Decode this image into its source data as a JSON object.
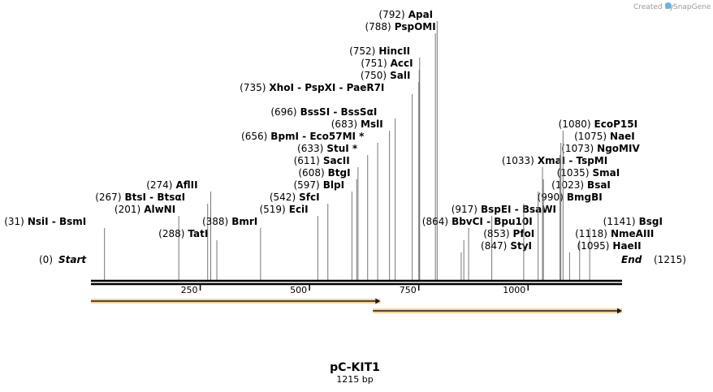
{
  "credit": {
    "text": "Created by",
    "brand": "SnapGene"
  },
  "plasmid": {
    "name": "pC-KIT1",
    "size_label": "1215 bp",
    "length": 1215
  },
  "ends": {
    "start": {
      "pos_label": "(0)",
      "name": "Start"
    },
    "end": {
      "pos_label": "(1215)",
      "name": "End"
    }
  },
  "ticks": [
    {
      "value": 250,
      "label": "250"
    },
    {
      "value": 500,
      "label": "500"
    },
    {
      "value": 750,
      "label": "750"
    },
    {
      "value": 1000,
      "label": "1000"
    }
  ],
  "features": [
    {
      "name": "feature-arrow-1",
      "start": 0,
      "end": 662,
      "color": "#f0b040"
    },
    {
      "name": "feature-arrow-2",
      "start": 645,
      "end": 1215,
      "color": "#f0b040"
    }
  ],
  "sites": [
    {
      "id": "nsii-bsmi",
      "pos": 31,
      "pos_label": "(31)",
      "text": "NsiI  - BsmI",
      "row": 12,
      "col": "left"
    },
    {
      "id": "alwni",
      "pos": 201,
      "pos_label": "(201)",
      "text": "AlwNI",
      "row": 11,
      "col": "left"
    },
    {
      "id": "btsi-btsai",
      "pos": 267,
      "pos_label": "(267)",
      "text": "BtsI  - BtsαI",
      "row": 10,
      "col": "left"
    },
    {
      "id": "aflii",
      "pos": 274,
      "pos_label": "(274)",
      "text": "AflII",
      "row": 9,
      "col": "left"
    },
    {
      "id": "tati",
      "pos": 288,
      "pos_label": "(288)",
      "text": "TatI",
      "row": 13,
      "col": "left"
    },
    {
      "id": "bmri",
      "pos": 388,
      "pos_label": "(388)",
      "text": "BmrI",
      "row": 12,
      "col": "left"
    },
    {
      "id": "ecii",
      "pos": 519,
      "pos_label": "(519)",
      "text": "EciI",
      "row": 11,
      "col": "left"
    },
    {
      "id": "sfci",
      "pos": 542,
      "pos_label": "(542)",
      "text": "SfcI",
      "row": 10,
      "col": "left"
    },
    {
      "id": "blpi",
      "pos": 597,
      "pos_label": "(597)",
      "text": "BlpI",
      "row": 9,
      "col": "left"
    },
    {
      "id": "btgi",
      "pos": 608,
      "pos_label": "(608)",
      "text": "BtgI",
      "row": 8,
      "col": "left"
    },
    {
      "id": "sacii",
      "pos": 611,
      "pos_label": "(611)",
      "text": "SacII",
      "row": 7,
      "col": "left"
    },
    {
      "id": "stui",
      "pos": 633,
      "pos_label": "(633)",
      "text": "StuI *",
      "row": 6,
      "col": "left"
    },
    {
      "id": "bpmi",
      "pos": 656,
      "pos_label": "(656)",
      "text": "BpmI  - Eco57MI *",
      "row": 5,
      "col": "left"
    },
    {
      "id": "msli",
      "pos": 683,
      "pos_label": "(683)",
      "text": "MslI",
      "row": 4,
      "col": "left"
    },
    {
      "id": "bsssi",
      "pos": 696,
      "pos_label": "(696)",
      "text": "BssSI  - BssSαI",
      "row": 3,
      "col": "left"
    },
    {
      "id": "xhoi",
      "pos": 735,
      "pos_label": "(735)",
      "text": "XhoI  - PspXI  - PaeR7I",
      "row": 1,
      "col": "left"
    },
    {
      "id": "sali",
      "pos": 750,
      "pos_label": "(750)",
      "text": "SalI",
      "row": 0,
      "col": "left"
    },
    {
      "id": "acci",
      "pos": 751,
      "pos_label": "(751)",
      "text": "AccI",
      "row": -1,
      "col": "left"
    },
    {
      "id": "hincii",
      "pos": 752,
      "pos_label": "(752)",
      "text": "HincII",
      "row": -2,
      "col": "left"
    },
    {
      "id": "pspomi",
      "pos": 788,
      "pos_label": "(788)",
      "text": "PspOMI",
      "row": -4,
      "col": "left"
    },
    {
      "id": "apai",
      "pos": 792,
      "pos_label": "(792)",
      "text": "ApaI",
      "row": -5,
      "col": "left"
    },
    {
      "id": "bbvci",
      "pos": 864,
      "pos_label": "(864)",
      "text": "BbvCI  - Bpu10I",
      "row": 12,
      "col": "mid"
    },
    {
      "id": "bspei",
      "pos": 917,
      "pos_label": "(917)",
      "text": "BspEI  - BsaWI",
      "row": 11,
      "col": "mid"
    },
    {
      "id": "xmai",
      "pos": 1033,
      "pos_label": "(1033)",
      "text": "XmaI  - TspMI",
      "row": 7,
      "col": "mid"
    },
    {
      "id": "pfoi",
      "pos": 853,
      "pos_label": "(853)",
      "text": "PfoI",
      "row": 13,
      "col": "mid"
    },
    {
      "id": "styi",
      "pos": 847,
      "pos_label": "(847)",
      "text": "StyI",
      "row": 14,
      "col": "mid"
    },
    {
      "id": "bmgbi",
      "pos": 990,
      "pos_label": "(990)",
      "text": "BmgBI",
      "row": 10,
      "col": "right"
    },
    {
      "id": "bsai",
      "pos": 1023,
      "pos_label": "(1023)",
      "text": "BsaI",
      "row": 9,
      "col": "right"
    },
    {
      "id": "smai",
      "pos": 1035,
      "pos_label": "(1035)",
      "text": "SmaI",
      "row": 8,
      "col": "right"
    },
    {
      "id": "ngomiv",
      "pos": 1073,
      "pos_label": "(1073)",
      "text": "NgoMIV",
      "row": 6,
      "col": "right"
    },
    {
      "id": "naei",
      "pos": 1075,
      "pos_label": "(1075)",
      "text": "NaeI",
      "row": 5,
      "col": "right"
    },
    {
      "id": "ecop15i",
      "pos": 1080,
      "pos_label": "(1080)",
      "text": "EcoP15I",
      "row": 4,
      "col": "right"
    },
    {
      "id": "bsgi",
      "pos": 1141,
      "pos_label": "(1141)",
      "text": "BsgI",
      "row": 12,
      "col": "right"
    },
    {
      "id": "nmeaiii",
      "pos": 1118,
      "pos_label": "(1118)",
      "text": "NmeAIII",
      "row": 13,
      "col": "right"
    },
    {
      "id": "haeii",
      "pos": 1095,
      "pos_label": "(1095)",
      "text": "HaeII",
      "row": 14,
      "col": "right"
    }
  ]
}
